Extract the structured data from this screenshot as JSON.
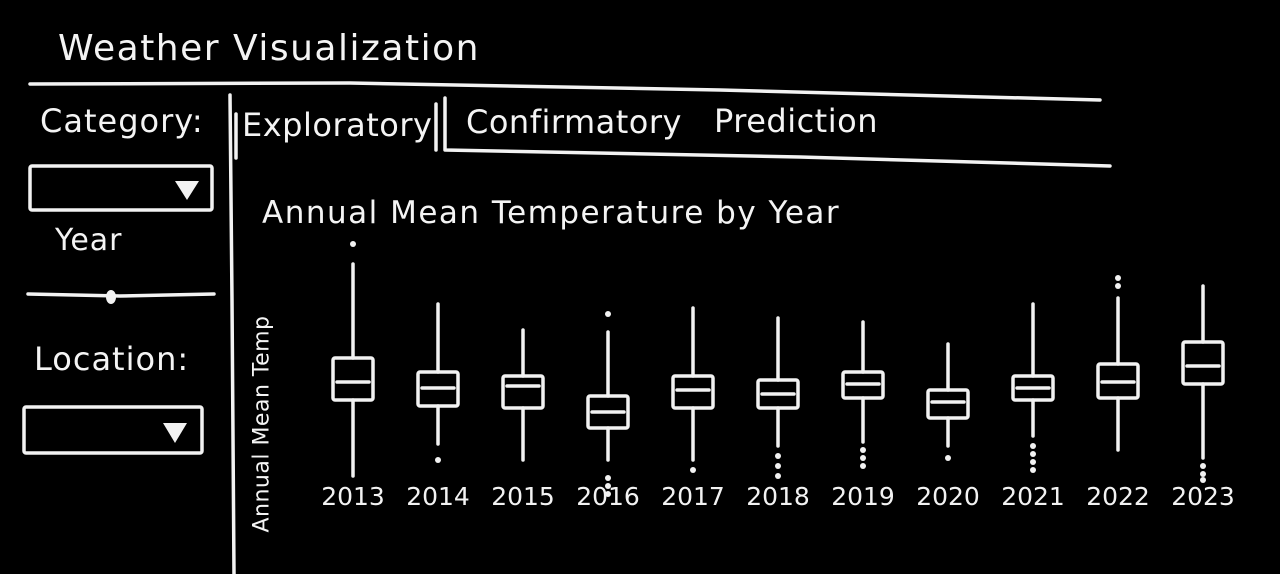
{
  "app": {
    "title": "Weather Visualization"
  },
  "sidebar": {
    "category_label": "Category:",
    "category_value": "",
    "year_label": "Year",
    "location_label": "Location:",
    "location_value": ""
  },
  "tabs": [
    {
      "label": "Exploratory",
      "active": true
    },
    {
      "label": "Confirmatory",
      "active": false
    },
    {
      "label": "Prediction",
      "active": false
    }
  ],
  "icons": {
    "dropdown": "triangle-down-icon",
    "slider_handle": "slider-thumb"
  },
  "colors": {
    "background": "#000000",
    "ink": "#f2f2f2"
  },
  "chart_data": {
    "type": "boxplot",
    "title": "Annual Mean Temperature by Year",
    "xlabel": "",
    "ylabel": "Annual Mean Temp",
    "y_axis_ticks": "none",
    "categories": [
      "2013",
      "2014",
      "2015",
      "2016",
      "2017",
      "2018",
      "2019",
      "2020",
      "2021",
      "2022",
      "2023"
    ],
    "series": [
      {
        "year": "2013",
        "whisker_low": 1.6,
        "q1": 3.5,
        "median": 3.95,
        "q3": 4.55,
        "whisker_high": 6.9,
        "outliers_high": [
          7.4
        ],
        "outliers_low": []
      },
      {
        "year": "2014",
        "whisker_low": 2.4,
        "q1": 3.35,
        "median": 3.8,
        "q3": 4.2,
        "whisker_high": 5.9,
        "outliers_high": [],
        "outliers_low": [
          2.0
        ]
      },
      {
        "year": "2015",
        "whisker_low": 2.0,
        "q1": 3.3,
        "median": 3.85,
        "q3": 4.1,
        "whisker_high": 5.25,
        "outliers_high": [],
        "outliers_low": []
      },
      {
        "year": "2016",
        "whisker_low": 2.0,
        "q1": 2.8,
        "median": 3.2,
        "q3": 3.6,
        "whisker_high": 5.2,
        "outliers_high": [
          5.65
        ],
        "outliers_low": [
          1.55,
          1.35,
          1.15
        ]
      },
      {
        "year": "2017",
        "whisker_low": 2.0,
        "q1": 3.3,
        "median": 3.75,
        "q3": 4.1,
        "whisker_high": 5.8,
        "outliers_high": [],
        "outliers_low": [
          1.75
        ]
      },
      {
        "year": "2018",
        "whisker_low": 2.35,
        "q1": 3.3,
        "median": 3.65,
        "q3": 4.0,
        "whisker_high": 5.55,
        "outliers_high": [],
        "outliers_low": [
          2.1,
          1.85,
          1.6
        ]
      },
      {
        "year": "2019",
        "whisker_low": 2.45,
        "q1": 3.55,
        "median": 3.9,
        "q3": 4.2,
        "whisker_high": 5.45,
        "outliers_high": [],
        "outliers_low": [
          2.25,
          2.05,
          1.85
        ]
      },
      {
        "year": "2020",
        "whisker_low": 2.35,
        "q1": 3.05,
        "median": 3.45,
        "q3": 3.75,
        "whisker_high": 4.9,
        "outliers_high": [],
        "outliers_low": [
          2.05
        ]
      },
      {
        "year": "2021",
        "whisker_low": 2.6,
        "q1": 3.5,
        "median": 3.8,
        "q3": 4.1,
        "whisker_high": 5.9,
        "outliers_high": [],
        "outliers_low": [
          2.35,
          2.15,
          1.95,
          1.75
        ]
      },
      {
        "year": "2022",
        "whisker_low": 2.25,
        "q1": 3.55,
        "median": 3.95,
        "q3": 4.4,
        "whisker_high": 6.05,
        "outliers_high": [
          6.55,
          6.35
        ],
        "outliers_low": []
      },
      {
        "year": "2023",
        "whisker_low": 2.05,
        "q1": 3.9,
        "median": 4.35,
        "q3": 4.95,
        "whisker_high": 6.35,
        "outliers_high": [],
        "outliers_low": [
          1.85,
          1.65,
          1.5
        ]
      }
    ],
    "ylim": [
      0,
      8
    ],
    "grid": false,
    "legend": "none"
  }
}
